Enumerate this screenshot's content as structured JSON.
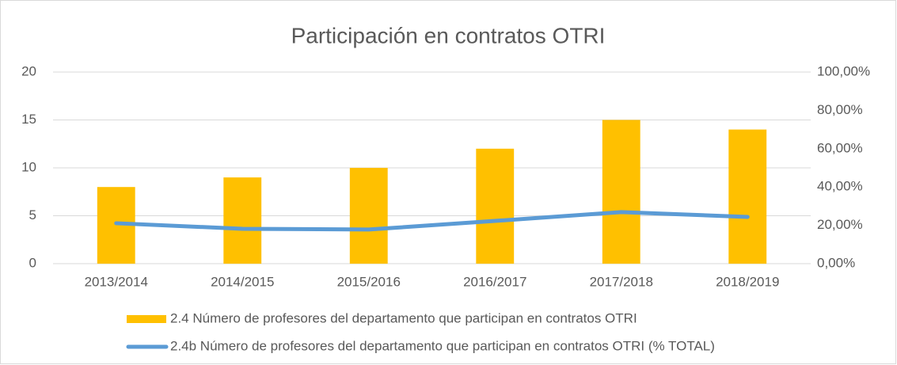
{
  "chart_data": {
    "type": "bar_line",
    "title": "Participación en contratos OTRI",
    "categories": [
      "2013/2014",
      "2014/2015",
      "2015/2016",
      "2016/2017",
      "2017/2018",
      "2018/2019"
    ],
    "series": [
      {
        "name": "2.4 Número de profesores del departamento que participan en contratos OTRI",
        "type": "bar",
        "color": "#ffc000",
        "values": [
          8,
          9,
          10,
          12,
          15,
          14
        ]
      },
      {
        "name": "2.4b Número de profesores del departamento que participan en contratos OTRI (% TOTAL)",
        "type": "line",
        "axis": "y2",
        "color": "#5b9bd5",
        "values": [
          21.1,
          18.2,
          17.8,
          22.3,
          26.9,
          24.4
        ]
      }
    ],
    "ylim": [
      0,
      20
    ],
    "yticks": [
      0,
      5,
      10,
      15,
      20
    ],
    "y2lim": [
      0,
      100
    ],
    "y2ticks": [
      {
        "value": 0,
        "label": "0,00%"
      },
      {
        "value": 20,
        "label": "20,00%"
      },
      {
        "value": 40,
        "label": "40,00%"
      },
      {
        "value": 60,
        "label": "60,00%"
      },
      {
        "value": 80,
        "label": "80,00%"
      },
      {
        "value": 100,
        "label": "100,00%"
      }
    ],
    "grid": true,
    "legend": "bottom"
  }
}
